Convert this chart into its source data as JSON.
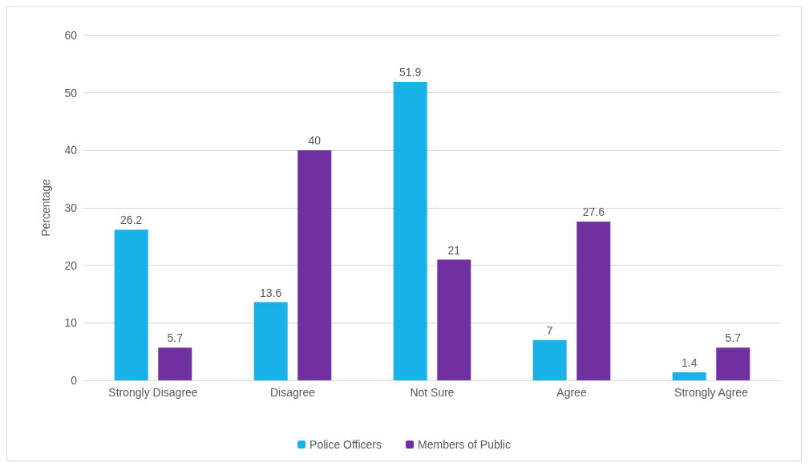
{
  "chart_data": {
    "type": "bar",
    "ylabel": "Percentage",
    "categories": [
      "Strongly Disagree",
      "Disagree",
      "Not Sure",
      "Agree",
      "Strongly Agree"
    ],
    "series": [
      {
        "name": "Police Officers",
        "color": "#19b2e8",
        "values": [
          26.2,
          13.6,
          51.9,
          7,
          1.4
        ]
      },
      {
        "name": "Members of Public",
        "color": "#7030a0",
        "values": [
          5.7,
          40,
          21,
          27.6,
          5.7
        ]
      }
    ],
    "ylim": [
      0,
      60
    ],
    "yticks": [
      0,
      10,
      20,
      30,
      40,
      50,
      60
    ],
    "grid": "y",
    "legend": "bottom",
    "data_labels": true
  }
}
